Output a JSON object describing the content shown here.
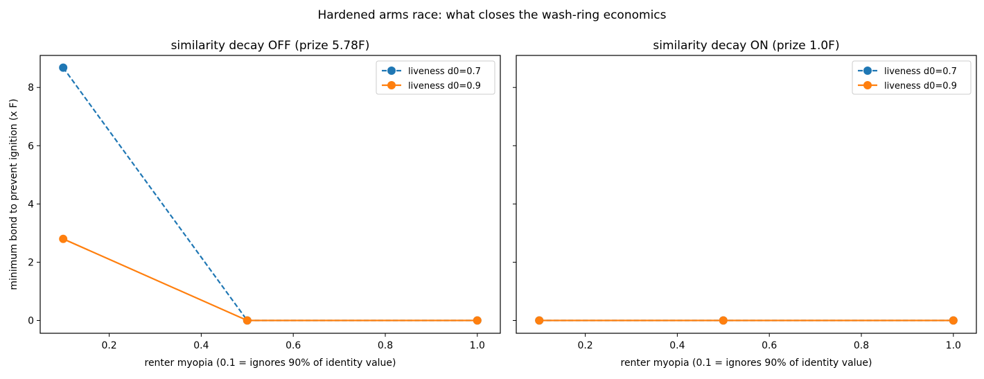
{
  "figure_title": "Hardened arms race: what closes the wash-ring economics",
  "colors": {
    "series0": "#1f77b4",
    "series1": "#ff7f0e",
    "axis": "#000000",
    "legend_border": "#cccccc"
  },
  "chart_data": [
    {
      "type": "line",
      "title": "similarity decay OFF (prize 5.78F)",
      "xlabel": "renter myopia (0.1 = ignores 90% of identity value)",
      "ylabel": "minimum bond to prevent ignition (x F)",
      "xlim": [
        0.05,
        1.05
      ],
      "ylim": [
        -0.44,
        9.1
      ],
      "xticks": [
        0.2,
        0.4,
        0.6,
        0.8,
        1.0
      ],
      "xtick_labels": [
        "0.2",
        "0.4",
        "0.6",
        "0.8",
        "1.0"
      ],
      "yticks": [
        0,
        2,
        4,
        6,
        8
      ],
      "ytick_labels": [
        "0",
        "2",
        "4",
        "6",
        "8"
      ],
      "grid": false,
      "legend": "top-right",
      "series": [
        {
          "name": "liveness d0=0.7",
          "style": "dashed",
          "color": "#1f77b4",
          "x": [
            0.1,
            0.5,
            1.0
          ],
          "y": [
            8.68,
            0.0,
            0.0
          ]
        },
        {
          "name": "liveness d0=0.9",
          "style": "solid",
          "color": "#ff7f0e",
          "x": [
            0.1,
            0.5,
            1.0
          ],
          "y": [
            2.8,
            0.0,
            0.0
          ]
        }
      ]
    },
    {
      "type": "line",
      "title": "similarity decay ON (prize 1.0F)",
      "xlabel": "renter myopia (0.1 = ignores 90% of identity value)",
      "ylabel": "",
      "xlim": [
        0.05,
        1.05
      ],
      "ylim": [
        -0.44,
        9.1
      ],
      "xticks": [
        0.2,
        0.4,
        0.6,
        0.8,
        1.0
      ],
      "xtick_labels": [
        "0.2",
        "0.4",
        "0.6",
        "0.8",
        "1.0"
      ],
      "yticks": [
        0,
        2,
        4,
        6,
        8
      ],
      "ytick_labels": [],
      "grid": false,
      "legend": "top-right",
      "series": [
        {
          "name": "liveness d0=0.7",
          "style": "dashed",
          "color": "#1f77b4",
          "x": [
            0.1,
            0.5,
            1.0
          ],
          "y": [
            0.0,
            0.0,
            0.0
          ]
        },
        {
          "name": "liveness d0=0.9",
          "style": "solid",
          "color": "#ff7f0e",
          "x": [
            0.1,
            0.5,
            1.0
          ],
          "y": [
            0.0,
            0.0,
            0.0
          ]
        }
      ]
    }
  ]
}
